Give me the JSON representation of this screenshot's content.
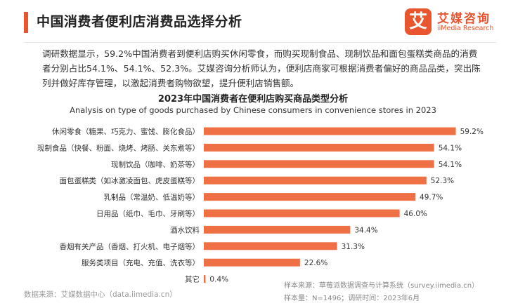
{
  "header": {
    "title": "中国消费者便利店消费品选择分析",
    "logo_mark": "艾",
    "logo_cn": "艾媒咨询",
    "logo_en": "iiMedia Research"
  },
  "summary": "调研数据显示，59.2%中国消费者到便利店购买休闲零食，而购买现制食品、现制饮品和面包蛋糕类商品的消费者分别占比54.1%、54.1%、52.3%。艾媒咨询分析师认为，便利店商家可根据消费者偏好的商品品类，突出陈列并做好库存管理，以激起消费者购物欲望，提升便利店销售额。",
  "chart_data": {
    "type": "bar",
    "orientation": "horizontal",
    "title": "2023年中国消费者在便利店购买商品类型分析",
    "subtitle": "Analysis on type of goods purchased by Chinese consumers in convenience stores in 2023",
    "categories": [
      "休闲零食（糖果、巧克力、蜜饯、膨化食品）",
      "现制食品（快餐、粉面、烧烤、烤肠、关东煮等）",
      "现制饮品（咖啡、奶茶等）",
      "面包蛋糕类（如冰激凌面包、虎皮蛋糕等）",
      "乳制品（常温奶、低温奶等）",
      "日用品（纸巾、毛巾、牙刷等）",
      "酒水饮料",
      "香烟有关产品（香烟、打火机、电子烟等）",
      "服务类项目（充电、充值、洗衣等）",
      "其它"
    ],
    "values": [
      59.2,
      54.1,
      54.1,
      52.3,
      49.7,
      46.0,
      34.4,
      31.3,
      22.6,
      0.4
    ],
    "value_labels": [
      "59.2%",
      "54.1%",
      "54.1%",
      "52.3%",
      "49.7%",
      "46.0%",
      "34.4%",
      "31.3%",
      "22.6%",
      "0.4%"
    ],
    "xlim": [
      0,
      70
    ],
    "grid": false,
    "legend": "none",
    "bar_color": "#f07046"
  },
  "footer": {
    "source_left": "数据来源：艾媒数据中心（data.iimedia.cn）",
    "source_right": "样本来源：草莓派数据调查与计算系统（survey.iimedia.cn）",
    "sample": "样本量：N=1496；调研时间：2023年6月"
  }
}
